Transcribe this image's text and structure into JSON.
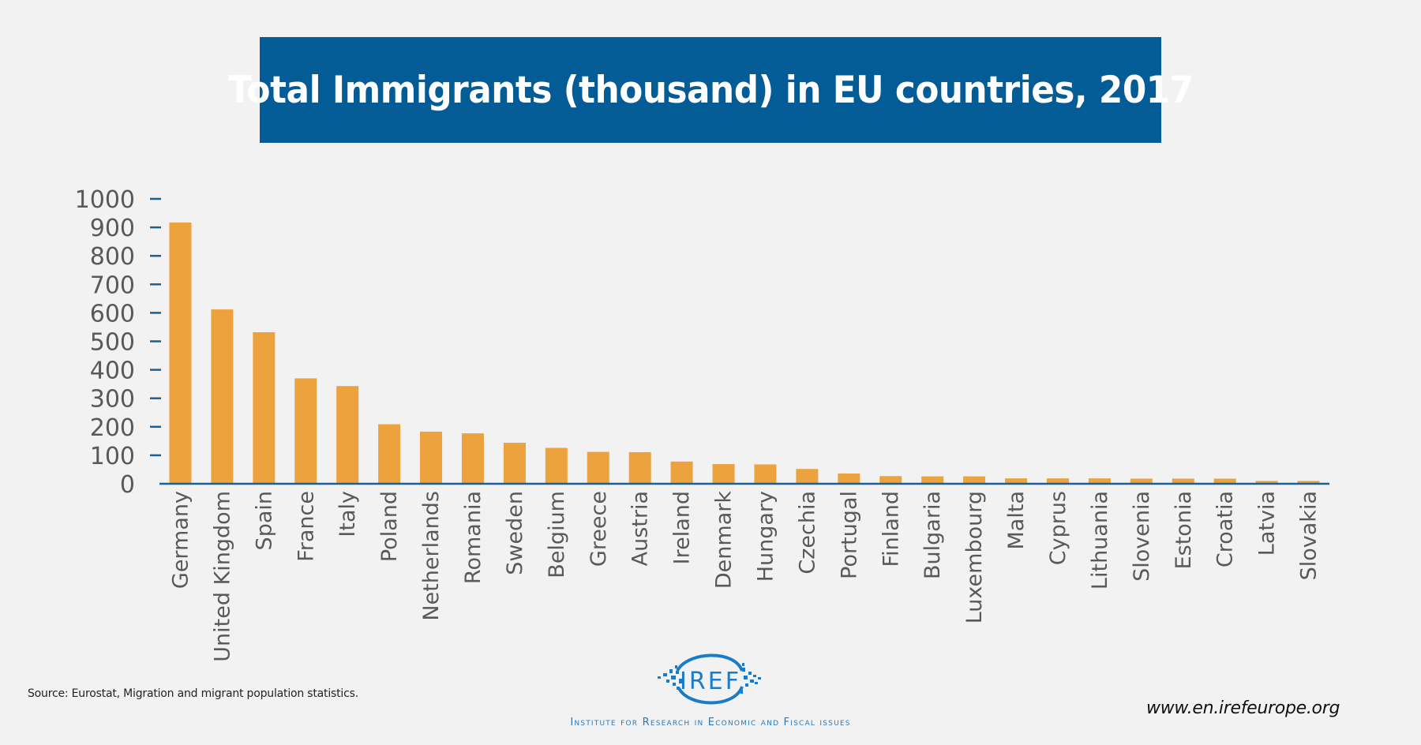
{
  "header": {
    "title": "Total Immigrants (thousand) in EU countries, 2017"
  },
  "chart_data": {
    "type": "bar",
    "title": "Total Immigrants (thousand) in EU countries, 2017",
    "xlabel": "",
    "ylabel": "",
    "ylim": [
      0,
      1000
    ],
    "yticks": [
      0,
      100,
      200,
      300,
      400,
      500,
      600,
      700,
      800,
      900,
      1000
    ],
    "grid": false,
    "legend": "none",
    "bar_color": "#eca23d",
    "axis_color": "#1a5f95",
    "categories": [
      "Germany",
      "United Kingdom",
      "Spain",
      "France",
      "Italy",
      "Poland",
      "Netherlands",
      "Romania",
      "Sweden",
      "Belgium",
      "Greece",
      "Austria",
      "Ireland",
      "Denmark",
      "Hungary",
      "Czechia",
      "Portugal",
      "Finland",
      "Bulgaria",
      "Luxembourg",
      "Malta",
      "Cyprus",
      "Lithuania",
      "Slovenia",
      "Estonia",
      "Croatia",
      "Latvia",
      "Slovakia"
    ],
    "values": [
      917,
      612,
      532,
      370,
      343,
      209,
      183,
      177,
      144,
      126,
      112,
      111,
      78,
      69,
      68,
      52,
      36,
      27,
      26,
      26,
      19,
      19,
      19,
      18,
      18,
      18,
      10,
      10
    ]
  },
  "footer": {
    "source": "Source: Eurostat, Migration and migrant population statistics.",
    "url": "www.en.irefeurope.org",
    "logo_text": "IREF",
    "logo_tagline": "Institute for Research in Economic and Fiscal issues",
    "logo_color": "#1a7cc8"
  }
}
